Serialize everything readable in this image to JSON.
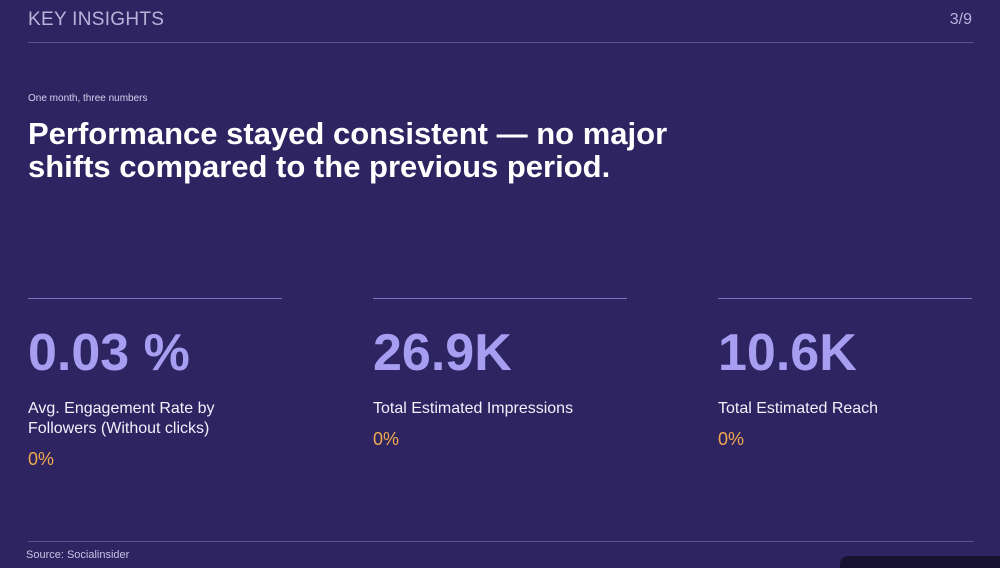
{
  "header": {
    "title": "KEY INSIGHTS",
    "page": "3/9"
  },
  "eyebrow": "One month, three numbers",
  "headline": "Performance stayed consistent — no major shifts compared to the previous period.",
  "metrics": [
    {
      "value": "0.03 %",
      "label": "Avg. Engagement Rate by Followers (Without clicks)",
      "change": "0%"
    },
    {
      "value": "26.9K",
      "label": "Total Estimated Impressions",
      "change": "0%"
    },
    {
      "value": "10.6K",
      "label": "Total Estimated Reach",
      "change": "0%"
    }
  ],
  "footer": {
    "source": "Source: Socialinsider"
  }
}
